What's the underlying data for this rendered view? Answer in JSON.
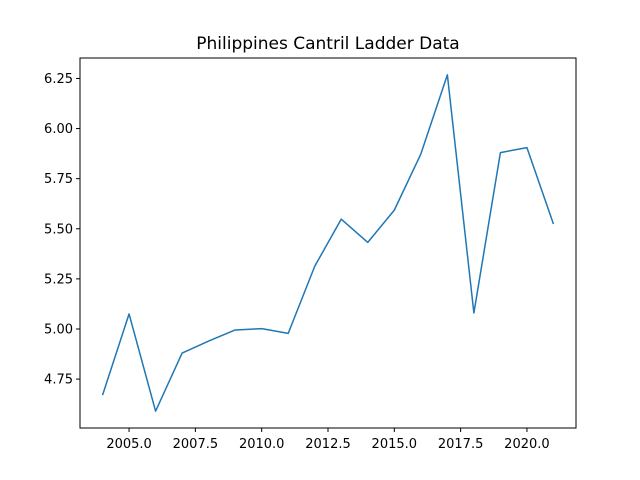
{
  "chart_data": {
    "type": "line",
    "title": "Philippines Cantril Ladder Data",
    "xlabel": "",
    "ylabel": "",
    "x": [
      2004,
      2005,
      2006,
      2007,
      2008,
      2009,
      2010,
      2011,
      2012,
      2013,
      2014,
      2015,
      2016,
      2017,
      2018,
      2019,
      2020,
      2021
    ],
    "series": [
      {
        "values": [
          4.67,
          5.075,
          4.59,
          4.88,
          4.94,
          4.995,
          5.002,
          4.978,
          5.313,
          5.548,
          5.432,
          5.593,
          5.873,
          6.268,
          5.08,
          5.88,
          5.905,
          5.524
        ],
        "color": "#1f77b4"
      }
    ],
    "xlim": [
      2003.15,
      2021.85
    ],
    "ylim": [
      4.506,
      6.352
    ],
    "xticks": [
      2005.0,
      2007.5,
      2010.0,
      2012.5,
      2015.0,
      2017.5,
      2020.0
    ],
    "xtick_labels": [
      "2005.0",
      "2007.5",
      "2010.0",
      "2012.5",
      "2015.0",
      "2017.5",
      "2020.0"
    ],
    "yticks": [
      4.75,
      5.0,
      5.25,
      5.5,
      5.75,
      6.0,
      6.25
    ],
    "ytick_labels": [
      "4.75",
      "5.00",
      "5.25",
      "5.50",
      "5.75",
      "6.00",
      "6.25"
    ],
    "grid": false,
    "legend": "none"
  }
}
